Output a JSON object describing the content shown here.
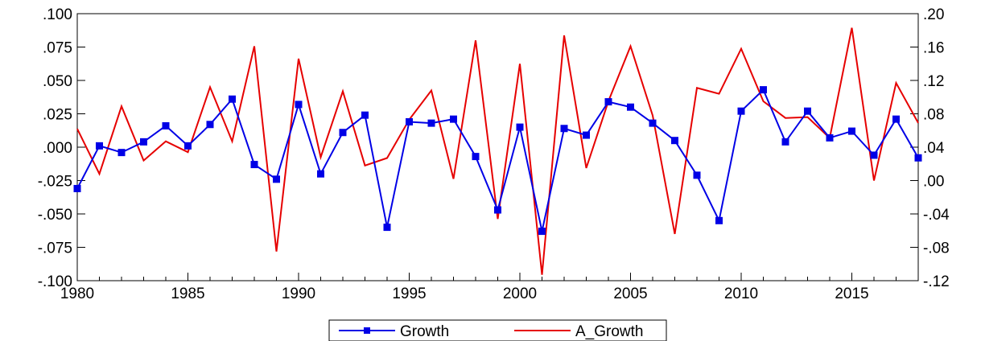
{
  "chart_data": {
    "type": "line",
    "title": "",
    "xlabel": "",
    "ylabel": "",
    "x": [
      1980,
      1981,
      1982,
      1983,
      1984,
      1985,
      1986,
      1987,
      1988,
      1989,
      1990,
      1991,
      1992,
      1993,
      1994,
      1995,
      1996,
      1997,
      1998,
      1999,
      2000,
      2001,
      2002,
      2003,
      2004,
      2005,
      2006,
      2007,
      2008,
      2009,
      2010,
      2011,
      2012,
      2013,
      2014,
      2015,
      2016,
      2017,
      2018
    ],
    "xlim": [
      1980,
      2018
    ],
    "x_ticks": [
      1980,
      1985,
      1990,
      1995,
      2000,
      2005,
      2010,
      2015
    ],
    "x_tick_labels": [
      "1980",
      "1985",
      "1990",
      "1995",
      "2000",
      "2005",
      "2010",
      "2015"
    ],
    "y_left_lim": [
      -0.1,
      0.1
    ],
    "y_left_ticks": [
      -0.1,
      -0.075,
      -0.05,
      -0.025,
      0,
      0.025,
      0.05,
      0.075,
      0.1
    ],
    "y_left_tick_labels": [
      "-.100",
      "-.075",
      "-.050",
      "-.025",
      ".000",
      ".025",
      ".050",
      ".075",
      ".100"
    ],
    "y_right_lim": [
      -0.12,
      0.2
    ],
    "y_right_ticks": [
      -0.12,
      -0.08,
      -0.04,
      0,
      0.04,
      0.08,
      0.12,
      0.16,
      0.2
    ],
    "y_right_tick_labels": [
      "-.12",
      "-.08",
      "-.04",
      ".00",
      ".04",
      ".08",
      ".12",
      ".16",
      ".20"
    ],
    "series": [
      {
        "name": "Growth",
        "axis": "left",
        "color": "#0000e6",
        "marker": "square",
        "values": [
          -0.031,
          0.001,
          -0.004,
          0.004,
          0.016,
          0.001,
          0.017,
          0.036,
          -0.013,
          -0.024,
          0.032,
          -0.02,
          0.011,
          0.024,
          -0.06,
          0.019,
          0.018,
          0.021,
          -0.007,
          -0.047,
          0.015,
          -0.063,
          0.014,
          0.009,
          0.034,
          0.03,
          0.018,
          0.005,
          -0.021,
          -0.055,
          0.027,
          0.043,
          0.004,
          0.027,
          0.007,
          0.012,
          -0.006,
          0.021,
          -0.008
        ]
      },
      {
        "name": "A_Growth",
        "axis": "right",
        "color": "#e60000",
        "marker": "none",
        "values": [
          0.062,
          0.008,
          0.089,
          0.024,
          0.047,
          0.034,
          0.112,
          0.047,
          0.161,
          -0.085,
          0.146,
          0.028,
          0.107,
          0.018,
          0.027,
          0.073,
          0.108,
          0.002,
          0.168,
          -0.046,
          0.14,
          -0.113,
          0.174,
          0.015,
          0.095,
          0.161,
          0.078,
          -0.064,
          0.111,
          0.104,
          0.158,
          0.095,
          0.075,
          0.076,
          0.051,
          0.183,
          -0.0,
          0.117,
          0.069
        ]
      }
    ],
    "legend": {
      "position": "bottom-center",
      "frame": true
    },
    "grid": false
  }
}
